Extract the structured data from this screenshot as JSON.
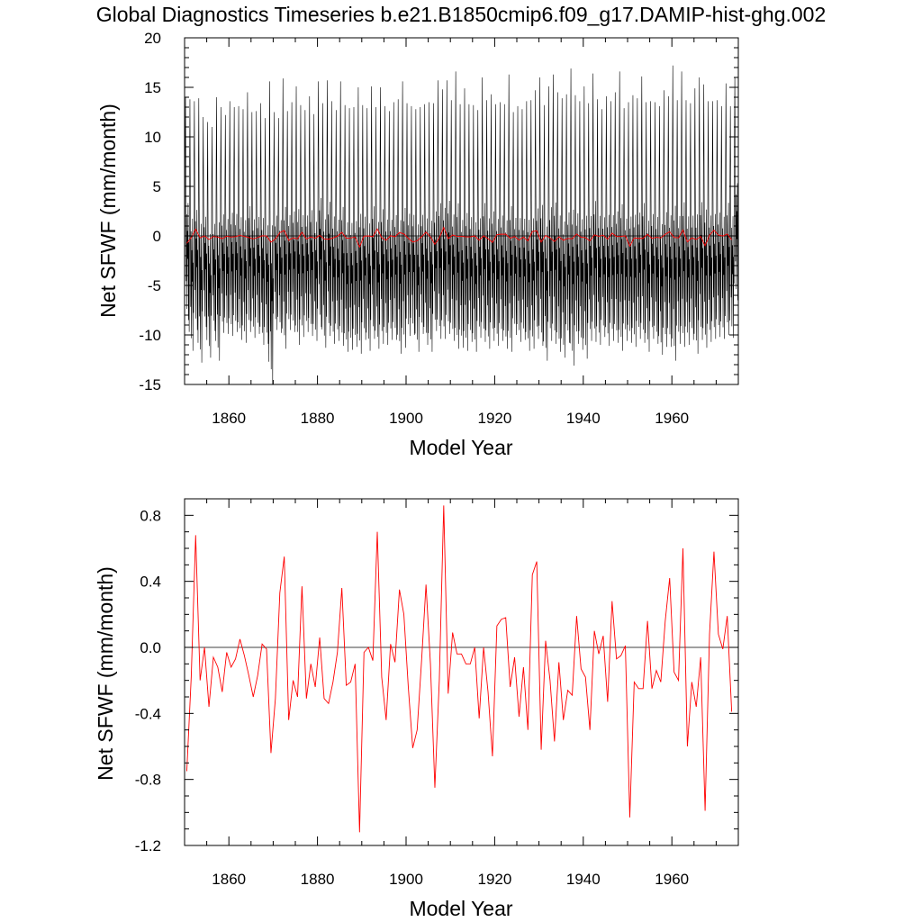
{
  "title": "Global Diagnostics Timeseries b.e21.B1850cmip6.f09_g17.DAMIP-hist-ghg.002",
  "chart_data": [
    {
      "type": "line",
      "title": "Global Diagnostics Timeseries b.e21.B1850cmip6.f09_g17.DAMIP-hist-ghg.002",
      "xlabel": "Model Year",
      "ylabel": "Net SFWF (mm/month)",
      "xlim": [
        1850,
        1975
      ],
      "ylim": [
        -15,
        20
      ],
      "xticks": [
        1860,
        1880,
        1900,
        1920,
        1940,
        1960
      ],
      "yticks": [
        -15,
        -10,
        -5,
        0,
        5,
        10,
        15,
        20
      ],
      "ytick_labels": [
        "-15",
        "-10",
        "-5",
        "0",
        "5",
        "10",
        "15",
        "20"
      ],
      "zero_line": 0,
      "grid": false,
      "series": [
        {
          "color": "#000000",
          "description_of_values": "monthly values; per-year seasonal maxima and minima listed",
          "x_start": 1850,
          "yearly_max": [
            14.0,
            13.8,
            13.6,
            13.9,
            12.0,
            11.5,
            11.0,
            14.0,
            13.0,
            12.2,
            13.6,
            13.0,
            13.1,
            12.8,
            14.5,
            12.5,
            12.6,
            13.4,
            11.9,
            15.6,
            12.5,
            11.9,
            15.9,
            12.6,
            13.5,
            15.1,
            13.2,
            12.7,
            14.1,
            12.3,
            15.6,
            13.4,
            15.7,
            13.6,
            12.7,
            15.6,
            13.2,
            12.9,
            13.0,
            15.0,
            13.2,
            12.9,
            15.1,
            13.0,
            15.0,
            13.1,
            12.6,
            13.5,
            13.8,
            15.6,
            13.4,
            13.1,
            12.8,
            13.0,
            13.3,
            13.5,
            13.4,
            15.7,
            14.8,
            15.7,
            13.7,
            16.6,
            13.3,
            14.9,
            13.3,
            13.2,
            12.7,
            16.0,
            13.7,
            14.3,
            13.3,
            13.5,
            13.3,
            16.3,
            12.5,
            13.1,
            12.8,
            13.6,
            13.7,
            14.7,
            16.0,
            13.2,
            15.1,
            16.3,
            14.5,
            13.9,
            14.3,
            16.9,
            14.2,
            13.6,
            15.1,
            13.4,
            16.4,
            13.8,
            12.8,
            14.1,
            13.6,
            14.5,
            16.6,
            12.9,
            13.5,
            14.2,
            13.9,
            16.1,
            13.5,
            13.6,
            13.5,
            13.1,
            14.7,
            14.1,
            17.2,
            13.7,
            16.6,
            13.7,
            13.4,
            14.9,
            16.0,
            15.3,
            13.6,
            13.6,
            13.7,
            13.1,
            15.4,
            13.1,
            16.0
          ],
          "yearly_min": [
            -8.5,
            -11.6,
            -9.5,
            -12.8,
            -9.2,
            -12.3,
            -9.6,
            -12.6,
            -9.8,
            -9.9,
            -10.1,
            -9.7,
            -10.5,
            -10.8,
            -9.7,
            -10.3,
            -9.9,
            -11.0,
            -10.9,
            -15.0,
            -9.5,
            -9.8,
            -11.4,
            -9.5,
            -9.7,
            -11.0,
            -10.2,
            -9.7,
            -10.1,
            -10.6,
            -9.2,
            -11.3,
            -10.1,
            -10.9,
            -10.6,
            -11.1,
            -11.7,
            -11.5,
            -11.2,
            -11.9,
            -10.5,
            -11.6,
            -10.4,
            -11.4,
            -10.9,
            -11.0,
            -10.5,
            -10.5,
            -11.9,
            -11.3,
            -10.1,
            -10.0,
            -11.7,
            -9.9,
            -11.0,
            -11.7,
            -9.6,
            -10.4,
            -10.4,
            -9.9,
            -10.6,
            -11.4,
            -11.3,
            -11.6,
            -10.7,
            -11.7,
            -10.3,
            -10.7,
            -11.4,
            -10.6,
            -11.1,
            -10.6,
            -11.4,
            -11.7,
            -10.0,
            -10.7,
            -10.5,
            -11.6,
            -11.4,
            -10.4,
            -11.1,
            -12.6,
            -10.6,
            -10.9,
            -11.7,
            -12.3,
            -10.8,
            -13.1,
            -10.9,
            -11.5,
            -12.4,
            -10.6,
            -10.7,
            -11.0,
            -10.2,
            -11.1,
            -10.6,
            -10.8,
            -11.6,
            -10.6,
            -10.8,
            -11.2,
            -10.4,
            -10.8,
            -11.7,
            -10.4,
            -10.9,
            -12.0,
            -11.2,
            -11.2,
            -12.6,
            -10.9,
            -11.2,
            -11.0,
            -10.5,
            -11.9,
            -10.5,
            -11.3,
            -10.7,
            -10.4,
            -10.2,
            -10.4,
            -10.0,
            -10.3,
            -6.5
          ]
        },
        {
          "color": "#ff0000",
          "description_of_values": "annual means (same as lower panel)",
          "ref": "annual"
        }
      ]
    },
    {
      "type": "line",
      "xlabel": "Model Year",
      "ylabel": "Net SFWF (mm/month)",
      "xlim": [
        1850,
        1975
      ],
      "ylim": [
        -1.2,
        0.9
      ],
      "xticks": [
        1860,
        1880,
        1900,
        1920,
        1940,
        1960
      ],
      "yticks": [
        -1.2,
        -0.8,
        -0.4,
        0.0,
        0.4,
        0.8
      ],
      "ytick_labels": [
        "-1.2",
        "-0.8",
        "-0.4",
        "0.0",
        "0.4",
        "0.8"
      ],
      "zero_line": 0,
      "grid": false,
      "series": [
        {
          "color": "#ff0000",
          "x_start": 1850.5,
          "x_step": 1,
          "values": [
            -0.75,
            -0.18,
            0.68,
            -0.2,
            0.0,
            -0.36,
            -0.06,
            -0.12,
            -0.27,
            -0.03,
            -0.12,
            -0.07,
            0.05,
            -0.05,
            -0.17,
            -0.3,
            -0.17,
            0.02,
            -0.01,
            -0.64,
            -0.31,
            0.33,
            0.55,
            -0.44,
            -0.2,
            -0.3,
            0.37,
            -0.31,
            -0.1,
            -0.24,
            0.06,
            -0.31,
            -0.34,
            -0.21,
            -0.03,
            0.36,
            -0.23,
            -0.21,
            -0.1,
            -1.12,
            -0.03,
            0.0,
            -0.08,
            0.7,
            -0.18,
            -0.44,
            0.02,
            -0.09,
            0.35,
            0.2,
            -0.24,
            -0.61,
            -0.5,
            -0.08,
            0.38,
            -0.1,
            -0.85,
            -0.2,
            0.86,
            -0.28,
            0.09,
            -0.04,
            -0.04,
            -0.1,
            -0.1,
            0.0,
            -0.43,
            0.0,
            -0.27,
            -0.66,
            0.13,
            0.17,
            0.18,
            -0.24,
            -0.06,
            -0.42,
            -0.12,
            -0.5,
            0.44,
            0.52,
            -0.62,
            0.04,
            -0.2,
            -0.57,
            -0.09,
            -0.44,
            -0.26,
            -0.29,
            0.19,
            -0.13,
            -0.18,
            -0.5,
            0.1,
            -0.04,
            0.07,
            -0.33,
            0.28,
            -0.07,
            -0.05,
            0.01,
            -1.03,
            -0.21,
            -0.25,
            -0.25,
            0.16,
            -0.25,
            -0.14,
            -0.21,
            0.16,
            0.42,
            -0.15,
            -0.2,
            0.6,
            -0.6,
            -0.21,
            -0.36,
            -0.06,
            -0.99,
            0.08,
            0.58,
            0.08,
            -0.01,
            0.19,
            -0.39
          ]
        }
      ]
    }
  ]
}
